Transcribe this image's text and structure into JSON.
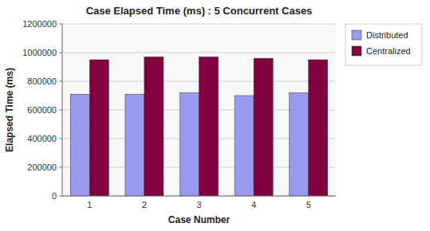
{
  "chart_data": {
    "type": "bar",
    "title": "Case Elapsed Time (ms) : 5 Concurrent Cases",
    "xlabel": "Case Number",
    "ylabel": "Elapsed Time (ms)",
    "categories": [
      "1",
      "2",
      "3",
      "4",
      "5"
    ],
    "series": [
      {
        "name": "Distributed",
        "color": "#9999ee",
        "values": [
          710000,
          710000,
          720000,
          700000,
          720000
        ]
      },
      {
        "name": "Centralized",
        "color": "#800040",
        "values": [
          950000,
          970000,
          970000,
          960000,
          950000
        ]
      }
    ],
    "ylim": [
      0,
      1200000
    ],
    "yticks": [
      0,
      200000,
      400000,
      600000,
      800000,
      1000000,
      1200000
    ],
    "grid": true,
    "legend": "right"
  }
}
